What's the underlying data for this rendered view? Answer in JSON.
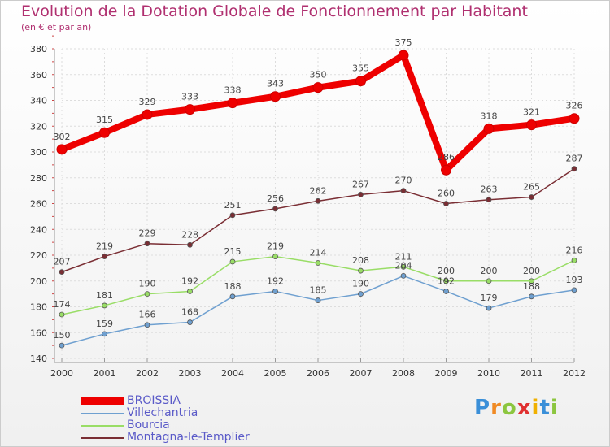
{
  "title": "Evolution de la Dotation Globale de Fonctionnement par Habitant",
  "subtitle": "(en € et par an)",
  "logo": "Proxiti",
  "chart_data": {
    "type": "line",
    "title": "Evolution de la Dotation Globale de Fonctionnement par Habitant",
    "subtitle": "(en € et par an)",
    "xlabel": "",
    "ylabel": "",
    "categories": [
      "2000",
      "2001",
      "2002",
      "2003",
      "2004",
      "2005",
      "2006",
      "2007",
      "2008",
      "2009",
      "2010",
      "2011",
      "2012"
    ],
    "ylim": [
      140,
      380
    ],
    "yticks": [
      140,
      160,
      180,
      200,
      220,
      240,
      260,
      280,
      300,
      320,
      340,
      360,
      380
    ],
    "grid": true,
    "legend_position": "bottom-left",
    "series": [
      {
        "name": "BROISSIA",
        "color": "#ee0000",
        "values": [
          302,
          315,
          329,
          333,
          338,
          343,
          350,
          355,
          375,
          286,
          318,
          321,
          326
        ]
      },
      {
        "name": "Villechantria",
        "color": "#6fa0d0",
        "values": [
          150,
          159,
          166,
          168,
          188,
          192,
          185,
          190,
          204,
          192,
          179,
          188,
          193
        ]
      },
      {
        "name": "Bourcia",
        "color": "#99dd66",
        "values": [
          174,
          181,
          190,
          192,
          215,
          219,
          214,
          208,
          211,
          200,
          200,
          200,
          216
        ]
      },
      {
        "name": "Montagna-le-Templier",
        "color": "#7a2e34",
        "values": [
          207,
          219,
          229,
          228,
          251,
          256,
          262,
          267,
          270,
          260,
          263,
          265,
          287
        ]
      }
    ]
  }
}
